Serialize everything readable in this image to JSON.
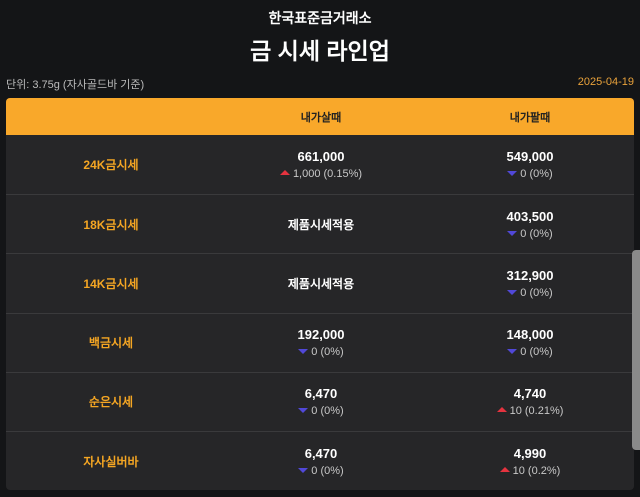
{
  "header": {
    "brand": "한국표준금거래소",
    "title": "금 시세 라인업"
  },
  "info": {
    "unit": "단위: 3.75g (자사골드바 기준)",
    "date": "2025-04-19"
  },
  "table": {
    "columns": [
      "",
      "내가살때",
      "내가팔때"
    ],
    "rows": [
      {
        "label": "24K금시세",
        "buy": {
          "price": "661,000",
          "change": "1,000 (0.15%)",
          "dir": "up"
        },
        "sell": {
          "price": "549,000",
          "change": "0 (0%)",
          "dir": "down"
        }
      },
      {
        "label": "18K금시세",
        "buy": {
          "text": "제품시세적용"
        },
        "sell": {
          "price": "403,500",
          "change": "0 (0%)",
          "dir": "down"
        }
      },
      {
        "label": "14K금시세",
        "buy": {
          "text": "제품시세적용"
        },
        "sell": {
          "price": "312,900",
          "change": "0 (0%)",
          "dir": "down"
        }
      },
      {
        "label": "백금시세",
        "buy": {
          "price": "192,000",
          "change": "0 (0%)",
          "dir": "down"
        },
        "sell": {
          "price": "148,000",
          "change": "0 (0%)",
          "dir": "down"
        }
      },
      {
        "label": "순은시세",
        "buy": {
          "price": "6,470",
          "change": "0 (0%)",
          "dir": "down"
        },
        "sell": {
          "price": "4,740",
          "change": "10 (0.21%)",
          "dir": "up"
        }
      },
      {
        "label": "자사실버바",
        "buy": {
          "price": "6,470",
          "change": "0 (0%)",
          "dir": "down"
        },
        "sell": {
          "price": "4,990",
          "change": "10 (0.2%)",
          "dir": "up"
        }
      }
    ]
  },
  "colors": {
    "accent": "#f9a82a",
    "up": "#e5333f",
    "down": "#5148d8",
    "background": "#141517"
  }
}
